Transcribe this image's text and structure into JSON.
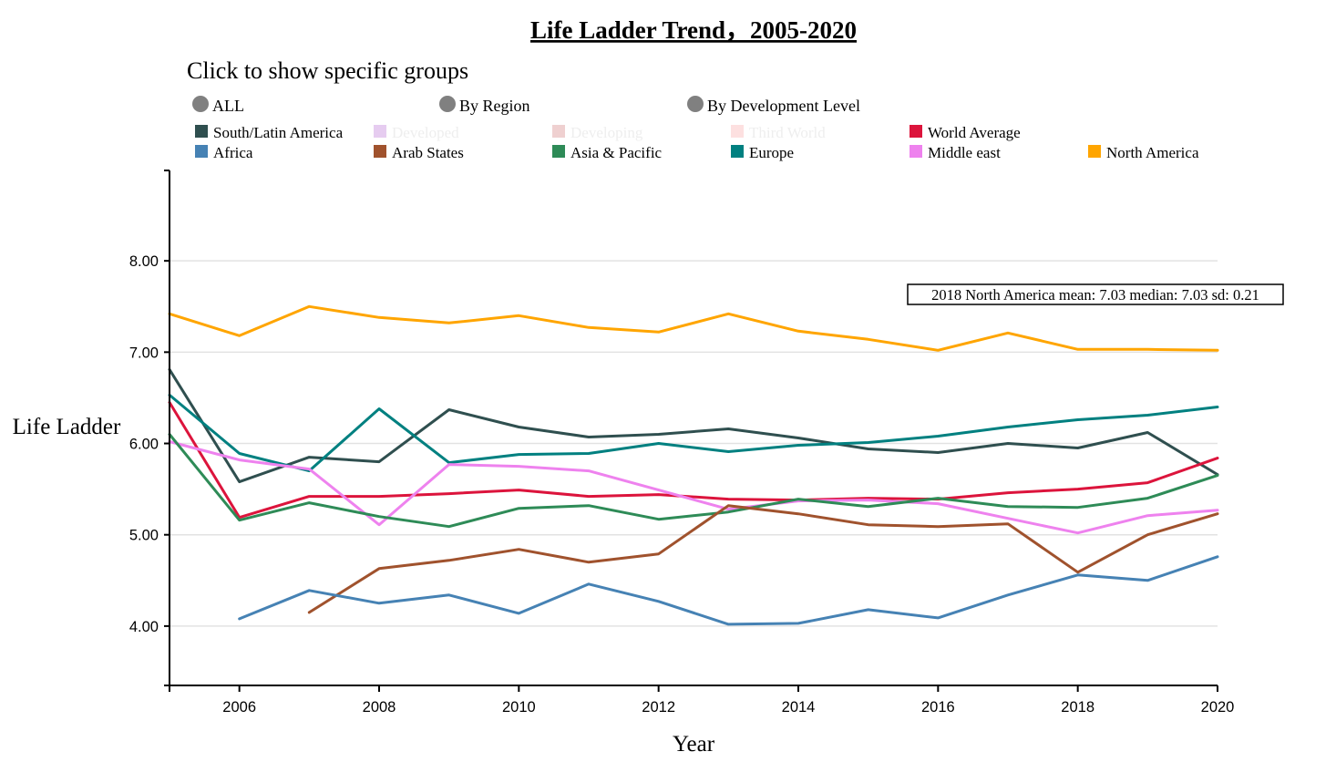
{
  "title": "Life Ladder Trend，2005-2020",
  "controls": {
    "prompt": "Click to show specific groups",
    "options": [
      "ALL",
      "By Region",
      "By Development Level"
    ]
  },
  "legend": [
    {
      "name": "South/Latin America",
      "color": "#2f4f4f",
      "active": true
    },
    {
      "name": "Developed",
      "color": "#e6ccf0",
      "active": false
    },
    {
      "name": "Developing",
      "color": "#efd0d0",
      "active": false
    },
    {
      "name": "Third World",
      "color": "#fde0e0",
      "active": false
    },
    {
      "name": "World Average",
      "color": "#dc143c",
      "active": true
    },
    {
      "name": "Africa",
      "color": "#4682b4",
      "active": true
    },
    {
      "name": "Arab States",
      "color": "#a0522d",
      "active": true
    },
    {
      "name": "Asia & Pacific",
      "color": "#2e8b57",
      "active": true
    },
    {
      "name": "Europe",
      "color": "#008080",
      "active": true
    },
    {
      "name": "Middle east",
      "color": "#ee82ee",
      "active": true
    },
    {
      "name": "North America",
      "color": "#ffa500",
      "active": true
    }
  ],
  "tooltip": "2018 North America mean: 7.03 median: 7.03 sd: 0.21",
  "chart_data": {
    "type": "line",
    "title": "Life Ladder Trend，2005-2020",
    "xlabel": "Year",
    "ylabel": "Life Ladder",
    "xlim": [
      2005,
      2020
    ],
    "ylim": [
      3.35,
      8.99
    ],
    "x_ticks": [
      "2006",
      "2008",
      "2010",
      "2012",
      "2014",
      "2016",
      "2018",
      "2020"
    ],
    "y_ticks": [
      "4.00",
      "5.00",
      "6.00",
      "7.00",
      "8.00"
    ],
    "grid": "horizontal",
    "series": [
      {
        "name": "North America",
        "color": "#ffa500",
        "x": [
          2005,
          2006,
          2007,
          2008,
          2009,
          2010,
          2011,
          2012,
          2013,
          2014,
          2015,
          2016,
          2017,
          2018,
          2019,
          2020
        ],
        "values": [
          7.42,
          7.18,
          7.5,
          7.38,
          7.32,
          7.4,
          7.27,
          7.22,
          7.42,
          7.23,
          7.14,
          7.02,
          7.21,
          7.03,
          7.03,
          7.02
        ]
      },
      {
        "name": "South/Latin America",
        "color": "#2f4f4f",
        "x": [
          2005,
          2006,
          2007,
          2008,
          2009,
          2010,
          2011,
          2012,
          2013,
          2014,
          2015,
          2016,
          2017,
          2018,
          2019,
          2020
        ],
        "values": [
          6.81,
          5.58,
          5.85,
          5.8,
          6.37,
          6.18,
          6.07,
          6.1,
          6.16,
          6.06,
          5.94,
          5.9,
          6.0,
          5.95,
          6.12,
          5.66
        ]
      },
      {
        "name": "Europe",
        "color": "#008080",
        "x": [
          2005,
          2006,
          2007,
          2008,
          2009,
          2010,
          2011,
          2012,
          2013,
          2014,
          2015,
          2016,
          2017,
          2018,
          2019,
          2020
        ],
        "values": [
          6.53,
          5.89,
          5.7,
          6.38,
          5.79,
          5.88,
          5.89,
          6.0,
          5.91,
          5.98,
          6.01,
          6.08,
          6.18,
          6.26,
          6.31,
          6.4
        ]
      },
      {
        "name": "World Average",
        "color": "#dc143c",
        "x": [
          2005,
          2006,
          2007,
          2008,
          2009,
          2010,
          2011,
          2012,
          2013,
          2014,
          2015,
          2016,
          2017,
          2018,
          2019,
          2020
        ],
        "values": [
          6.45,
          5.19,
          5.42,
          5.42,
          5.45,
          5.49,
          5.42,
          5.44,
          5.39,
          5.38,
          5.4,
          5.39,
          5.46,
          5.5,
          5.57,
          5.84
        ]
      },
      {
        "name": "Middle east",
        "color": "#ee82ee",
        "x": [
          2005,
          2006,
          2007,
          2008,
          2009,
          2010,
          2011,
          2012,
          2013,
          2014,
          2015,
          2016,
          2017,
          2018,
          2019,
          2020
        ],
        "values": [
          6.02,
          5.82,
          5.72,
          5.11,
          5.77,
          5.75,
          5.7,
          5.49,
          5.28,
          5.37,
          5.38,
          5.34,
          5.18,
          5.02,
          5.21,
          5.27
        ]
      },
      {
        "name": "Asia & Pacific",
        "color": "#2e8b57",
        "x": [
          2005,
          2006,
          2007,
          2008,
          2009,
          2010,
          2011,
          2012,
          2013,
          2014,
          2015,
          2016,
          2017,
          2018,
          2019,
          2020
        ],
        "values": [
          6.1,
          5.16,
          5.35,
          5.2,
          5.09,
          5.29,
          5.32,
          5.17,
          5.25,
          5.39,
          5.31,
          5.4,
          5.31,
          5.3,
          5.4,
          5.65
        ]
      },
      {
        "name": "Arab States",
        "color": "#a0522d",
        "x": [
          2007,
          2008,
          2009,
          2010,
          2011,
          2012,
          2013,
          2014,
          2015,
          2016,
          2017,
          2018,
          2019,
          2020
        ],
        "values": [
          4.15,
          4.63,
          4.72,
          4.84,
          4.7,
          4.79,
          5.32,
          5.23,
          5.11,
          5.09,
          5.12,
          4.59,
          5.0,
          5.23
        ]
      },
      {
        "name": "Africa",
        "color": "#4682b4",
        "x": [
          2006,
          2007,
          2008,
          2009,
          2010,
          2011,
          2012,
          2013,
          2014,
          2015,
          2016,
          2017,
          2018,
          2019,
          2020
        ],
        "values": [
          4.08,
          4.39,
          4.25,
          4.34,
          4.14,
          4.46,
          4.27,
          4.02,
          4.03,
          4.18,
          4.09,
          4.34,
          4.56,
          4.5,
          4.76
        ]
      }
    ]
  }
}
